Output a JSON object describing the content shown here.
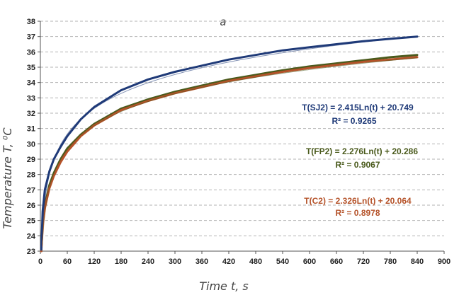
{
  "chart_data": {
    "type": "line",
    "panel_label": "a",
    "xlabel": "Time t, s",
    "ylabel": "Temperature T, ⁰C",
    "xlim": [
      0,
      900
    ],
    "ylim": [
      23,
      38
    ],
    "xticks": [
      0,
      60,
      120,
      180,
      240,
      300,
      360,
      420,
      480,
      540,
      600,
      660,
      720,
      780,
      840,
      900
    ],
    "yticks": [
      23,
      24,
      25,
      26,
      27,
      28,
      29,
      30,
      31,
      32,
      33,
      34,
      35,
      36,
      37,
      38
    ],
    "grid": "horizontal dashed",
    "series": [
      {
        "key": "SJ2",
        "color": "#1f3a78",
        "x": [
          2,
          5,
          10,
          20,
          30,
          45,
          60,
          90,
          120,
          180,
          240,
          300,
          360,
          420,
          480,
          540,
          600,
          660,
          720,
          780,
          840
        ],
        "values": [
          23.1,
          25.6,
          27.0,
          28.2,
          29.0,
          29.8,
          30.5,
          31.6,
          32.4,
          33.5,
          34.2,
          34.7,
          35.1,
          35.5,
          35.8,
          36.1,
          36.3,
          36.5,
          36.7,
          36.85,
          37.0
        ],
        "fit": {
          "a": 2.415,
          "b": 20.749
        },
        "equation": "T(SJ2) = 2.415Ln(t) + 20.749",
        "r2": "R² = 0.9265"
      },
      {
        "key": "FP2",
        "color": "#4a5a1c",
        "x": [
          2,
          5,
          10,
          20,
          30,
          45,
          60,
          90,
          120,
          180,
          240,
          300,
          360,
          420,
          480,
          540,
          600,
          660,
          720,
          780,
          840
        ],
        "values": [
          23.0,
          24.9,
          26.0,
          27.3,
          28.1,
          29.0,
          29.7,
          30.6,
          31.3,
          32.3,
          32.9,
          33.4,
          33.8,
          34.2,
          34.5,
          34.8,
          35.05,
          35.25,
          35.45,
          35.65,
          35.8
        ],
        "fit": {
          "a": 2.276,
          "b": 20.286
        },
        "equation": "T(FP2) = 2.276Ln(t) + 20.286",
        "r2": "R² = 0.9067"
      },
      {
        "key": "C2",
        "color": "#b5532a",
        "x": [
          2,
          5,
          10,
          20,
          30,
          45,
          60,
          90,
          120,
          180,
          240,
          300,
          360,
          420,
          480,
          540,
          600,
          660,
          720,
          780,
          840
        ],
        "values": [
          23.0,
          24.7,
          25.8,
          27.1,
          27.9,
          28.8,
          29.5,
          30.5,
          31.2,
          32.2,
          32.8,
          33.3,
          33.7,
          34.1,
          34.4,
          34.7,
          34.95,
          35.15,
          35.35,
          35.5,
          35.65
        ],
        "fit": {
          "a": 2.326,
          "b": 20.064
        },
        "equation": "T(C2) = 2.326Ln(t) + 20.064",
        "r2": "R² = 0.8978"
      }
    ]
  }
}
